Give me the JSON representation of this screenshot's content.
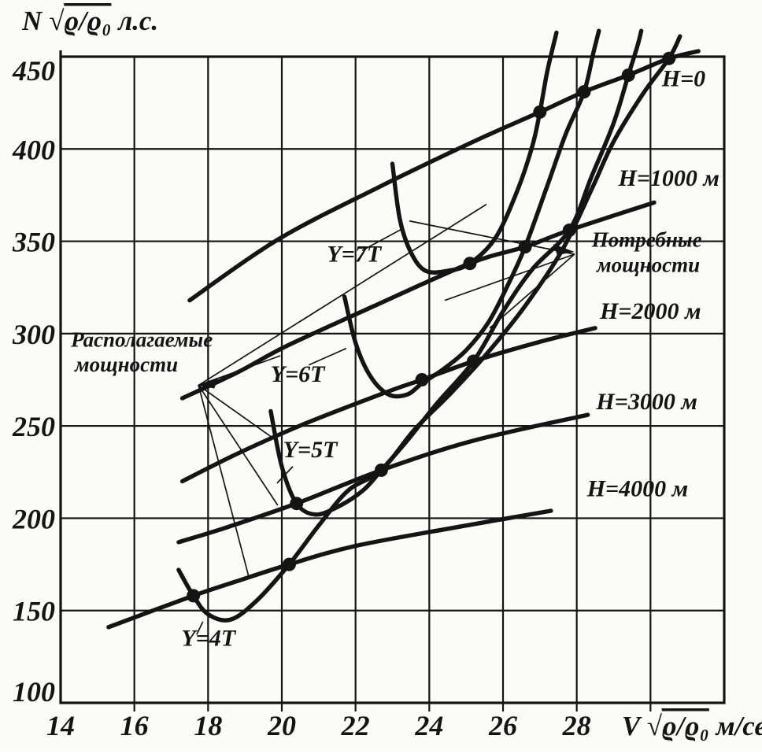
{
  "figure": {
    "background": "#fbfbf8",
    "ink_color": "#141414",
    "y_axis_title": {
      "prefix": "N",
      "radical": "√",
      "radicand": "ϱ/ϱ₀",
      "suffix": " л.с."
    },
    "x_axis_title": {
      "prefix": "V",
      "radical": "√",
      "radicand": "ϱ/ϱ₀",
      "suffix": " м/сек"
    }
  },
  "chart_data": {
    "type": "line",
    "title": "",
    "xlabel": "V√ϱ/ϱ₀ м/сек",
    "ylabel": "N√ϱ/ϱ₀ л.с.",
    "xlim": [
      14,
      32
    ],
    "ylim": [
      100,
      450
    ],
    "grid": true,
    "x_ticks": [
      14,
      16,
      18,
      20,
      22,
      24,
      26,
      28
    ],
    "x_gridlines": [
      16,
      18,
      20,
      22,
      24,
      26,
      28,
      30
    ],
    "y_ticks": [
      450,
      400,
      350,
      300,
      250,
      200,
      150,
      100
    ],
    "y_gridlines": [
      150,
      200,
      250,
      300,
      350,
      400
    ],
    "series": [
      {
        "name": "available-H0",
        "group": "available",
        "label": "H=0",
        "points": [
          [
            17.5,
            318
          ],
          [
            19.9,
            351
          ],
          [
            22.6,
            379
          ],
          [
            25.2,
            404
          ],
          [
            27.0,
            420
          ],
          [
            28.2,
            431
          ],
          [
            29.4,
            440
          ],
          [
            30.5,
            449
          ],
          [
            31.3,
            453
          ]
        ]
      },
      {
        "name": "available-H1000",
        "group": "available",
        "label": "H=1000 м",
        "points": [
          [
            17.3,
            265
          ],
          [
            18.8,
            279
          ],
          [
            20.1,
            293
          ],
          [
            22.4,
            314
          ],
          [
            25.1,
            338
          ],
          [
            26.6,
            347
          ],
          [
            27.8,
            356
          ],
          [
            30.1,
            371
          ]
        ]
      },
      {
        "name": "available-H2000",
        "group": "available",
        "label": "H=2000 м",
        "points": [
          [
            17.3,
            220
          ],
          [
            18.8,
            235
          ],
          [
            20.6,
            251
          ],
          [
            22.8,
            268
          ],
          [
            23.8,
            275
          ],
          [
            25.2,
            285
          ],
          [
            26.9,
            295
          ],
          [
            28.5,
            303
          ]
        ]
      },
      {
        "name": "available-H3000",
        "group": "available",
        "label": "H=3000 м",
        "points": [
          [
            17.2,
            187
          ],
          [
            18.5,
            195
          ],
          [
            20.4,
            208
          ],
          [
            22.7,
            226
          ],
          [
            25.2,
            242
          ],
          [
            28.3,
            256
          ]
        ]
      },
      {
        "name": "available-H4000",
        "group": "available",
        "label": "H=4000 м",
        "points": [
          [
            15.3,
            141
          ],
          [
            17.6,
            158
          ],
          [
            18.8,
            166
          ],
          [
            20.2,
            175
          ],
          [
            22.0,
            185
          ],
          [
            24.7,
            195
          ],
          [
            27.3,
            204
          ]
        ]
      },
      {
        "name": "required-Y7",
        "group": "required",
        "label": "Y=7T",
        "points": [
          [
            23.0,
            392
          ],
          [
            23.2,
            362
          ],
          [
            23.5,
            344
          ],
          [
            23.9,
            334
          ],
          [
            24.5,
            334
          ],
          [
            25.1,
            338
          ],
          [
            25.8,
            352
          ],
          [
            26.4,
            378
          ],
          [
            26.8,
            402
          ],
          [
            27.0,
            420
          ],
          [
            27.2,
            442
          ],
          [
            27.45,
            463
          ]
        ]
      },
      {
        "name": "required-Y6",
        "group": "required",
        "label": "Y=6T",
        "points": [
          [
            21.7,
            320
          ],
          [
            22.0,
            295
          ],
          [
            22.4,
            277
          ],
          [
            22.9,
            267
          ],
          [
            23.4,
            267
          ],
          [
            23.8,
            273
          ],
          [
            24.4,
            281
          ],
          [
            25.0,
            291
          ],
          [
            25.6,
            306
          ],
          [
            26.1,
            325
          ],
          [
            26.6,
            347
          ],
          [
            27.2,
            380
          ],
          [
            27.7,
            408
          ],
          [
            28.2,
            431
          ],
          [
            28.45,
            452
          ],
          [
            28.6,
            464
          ]
        ]
      },
      {
        "name": "required-Y5",
        "group": "required",
        "label": "Y=5T",
        "points": [
          [
            19.7,
            258
          ],
          [
            20.0,
            228
          ],
          [
            20.4,
            208
          ],
          [
            20.9,
            202
          ],
          [
            21.5,
            206
          ],
          [
            22.2,
            215
          ],
          [
            22.7,
            226
          ],
          [
            23.4,
            242
          ],
          [
            24.2,
            262
          ],
          [
            25.2,
            285
          ],
          [
            26.0,
            312
          ],
          [
            26.8,
            335
          ],
          [
            27.8,
            356
          ],
          [
            28.4,
            385
          ],
          [
            29.0,
            414
          ],
          [
            29.4,
            440
          ],
          [
            29.65,
            456
          ],
          [
            29.75,
            464
          ]
        ]
      },
      {
        "name": "required-Y4",
        "group": "required",
        "label": "Y=4T",
        "points": [
          [
            17.2,
            172
          ],
          [
            17.6,
            158
          ],
          [
            18.0,
            148
          ],
          [
            18.6,
            145
          ],
          [
            19.3,
            155
          ],
          [
            20.2,
            175
          ],
          [
            21.0,
            196
          ],
          [
            21.8,
            215
          ],
          [
            22.7,
            226
          ],
          [
            23.6,
            248
          ],
          [
            24.6,
            268
          ],
          [
            25.6,
            290
          ],
          [
            26.6,
            315
          ],
          [
            27.6,
            345
          ],
          [
            28.4,
            378
          ],
          [
            29.0,
            404
          ],
          [
            29.8,
            430
          ],
          [
            30.5,
            449
          ],
          [
            30.8,
            461
          ]
        ]
      }
    ],
    "intersection_dots": [
      [
        17.6,
        158
      ],
      [
        20.2,
        175
      ],
      [
        20.4,
        208
      ],
      [
        22.7,
        226
      ],
      [
        23.8,
        275
      ],
      [
        25.2,
        285
      ],
      [
        25.1,
        338
      ],
      [
        26.6,
        347
      ],
      [
        27.8,
        356
      ],
      [
        27.0,
        420
      ],
      [
        28.2,
        431
      ],
      [
        29.4,
        440
      ],
      [
        30.5,
        449
      ]
    ],
    "annotations": [
      {
        "id": "label-h0",
        "lines": [
          "H=0"
        ],
        "v": 30.9,
        "n": 434,
        "anchor": "middle",
        "size": 30
      },
      {
        "id": "label-h1000",
        "lines": [
          "H=1000 м"
        ],
        "v": 30.5,
        "n": 380,
        "anchor": "middle",
        "size": 30
      },
      {
        "id": "label-h2000",
        "lines": [
          "H=2000 м"
        ],
        "v": 30.0,
        "n": 308,
        "anchor": "middle",
        "size": 30
      },
      {
        "id": "label-h3000",
        "lines": [
          "H=3000 м"
        ],
        "v": 29.9,
        "n": 259,
        "anchor": "middle",
        "size": 30
      },
      {
        "id": "label-h4000",
        "lines": [
          "H=4000 м"
        ],
        "v": 29.65,
        "n": 212,
        "anchor": "middle",
        "size": 30
      },
      {
        "id": "label-y7",
        "lines": [
          "Y=7T"
        ],
        "v": 21.96,
        "n": 339,
        "anchor": "middle",
        "size": 30
      },
      {
        "id": "label-y6",
        "lines": [
          "Y=6T"
        ],
        "v": 20.43,
        "n": 274,
        "anchor": "middle",
        "size": 30
      },
      {
        "id": "label-y5",
        "lines": [
          "Y=5T"
        ],
        "v": 20.77,
        "n": 233,
        "anchor": "middle",
        "size": 30
      },
      {
        "id": "label-y4",
        "lines": [
          "Y=4T"
        ],
        "v": 18.01,
        "n": 131,
        "anchor": "middle",
        "size": 30
      },
      {
        "id": "label-required-power",
        "lines": [
          "Потребные",
          "мощности"
        ],
        "v": 29.9,
        "n": 347,
        "anchor": "middle",
        "size": 27
      },
      {
        "id": "label-available-power",
        "lines": [
          "Располагаемые",
          "мощности"
        ],
        "v": 14.28,
        "n": 293,
        "anchor": "start",
        "size": 27
      }
    ],
    "leader_lines": [
      {
        "from": [
          17.74,
          272
        ],
        "to": [
          19.96,
          288
        ]
      },
      {
        "from": [
          17.74,
          272
        ],
        "to": [
          19.79,
          243
        ]
      },
      {
        "from": [
          17.74,
          272
        ],
        "to": [
          19.89,
          207
        ]
      },
      {
        "from": [
          17.74,
          272
        ],
        "to": [
          19.12,
          167
        ]
      },
      {
        "from": [
          17.74,
          272
        ],
        "to": [
          25.55,
          370
        ]
      },
      {
        "from": [
          27.94,
          343
        ],
        "to": [
          23.46,
          361
        ]
      },
      {
        "from": [
          27.94,
          343
        ],
        "to": [
          24.42,
          318
        ]
      },
      {
        "from": [
          27.94,
          343
        ],
        "to": [
          25.64,
          303
        ]
      },
      {
        "from": [
          22.18,
          345
        ],
        "to": [
          23.29,
          357
        ]
      },
      {
        "from": [
          20.73,
          283
        ],
        "to": [
          21.75,
          292
        ]
      },
      {
        "from": [
          20.3,
          228
        ],
        "to": [
          19.87,
          219
        ]
      },
      {
        "from": [
          17.69,
          137
        ],
        "to": [
          17.86,
          144
        ]
      }
    ],
    "arrows": [
      {
        "id": "arrow-to-available-label",
        "tip": [
          17.7,
          272
        ],
        "dir": "left"
      },
      {
        "id": "arrow-to-required-dots",
        "tip": [
          27.94,
          344.3
        ],
        "dir": "right"
      }
    ],
    "legend_position": "none"
  }
}
